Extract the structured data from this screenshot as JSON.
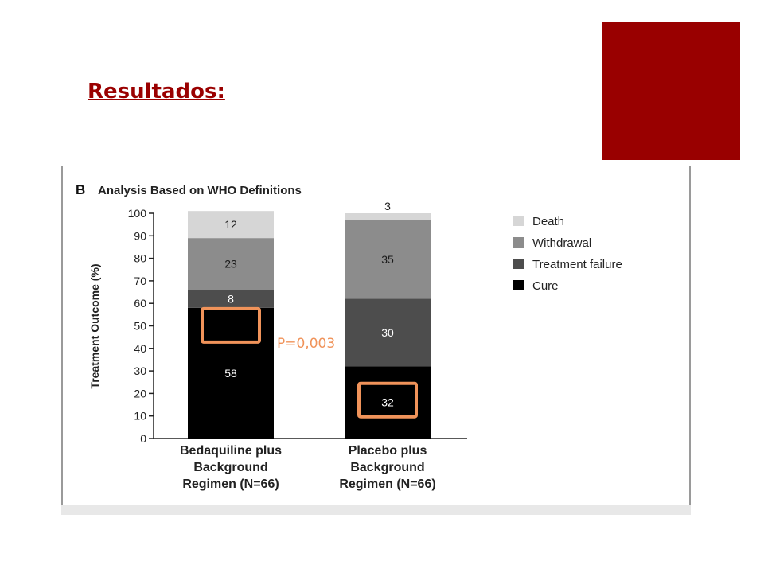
{
  "slide": {
    "title": "Resultados:",
    "accent_color": "#990000"
  },
  "annotation": {
    "pvalue_text": "P=0,003",
    "highlight_color": "#f0935a"
  },
  "chart_data": {
    "type": "bar",
    "stacked": true,
    "panel_letter": "B",
    "title": "Analysis Based on WHO Definitions",
    "xlabel": "",
    "ylabel": "Treatment Outcome (%)",
    "ylim": [
      0,
      100
    ],
    "yticks": [
      0,
      10,
      20,
      30,
      40,
      50,
      60,
      70,
      80,
      90,
      100
    ],
    "categories": [
      [
        "Bedaquiline plus",
        "Background",
        "Regimen (N=66)"
      ],
      [
        "Placebo plus",
        "Background",
        "Regimen (N=66)"
      ]
    ],
    "series": [
      {
        "name": "Cure",
        "color": "#000000",
        "label_color": "#ffffff",
        "values": [
          58,
          32
        ]
      },
      {
        "name": "Treatment failure",
        "color": "#4d4d4d",
        "label_color": "#ffffff",
        "values": [
          8,
          30
        ]
      },
      {
        "name": "Withdrawal",
        "color": "#8c8c8c",
        "label_color": "#1a1a1a",
        "values": [
          23,
          35
        ]
      },
      {
        "name": "Death",
        "color": "#d6d6d6",
        "label_color": "#1a1a1a",
        "values": [
          12,
          3
        ]
      }
    ],
    "highlighted": [
      [
        0,
        0
      ],
      [
        1,
        0
      ]
    ],
    "legend": {
      "position": "right",
      "order": [
        "Death",
        "Withdrawal",
        "Treatment failure",
        "Cure"
      ]
    },
    "grid": false
  }
}
